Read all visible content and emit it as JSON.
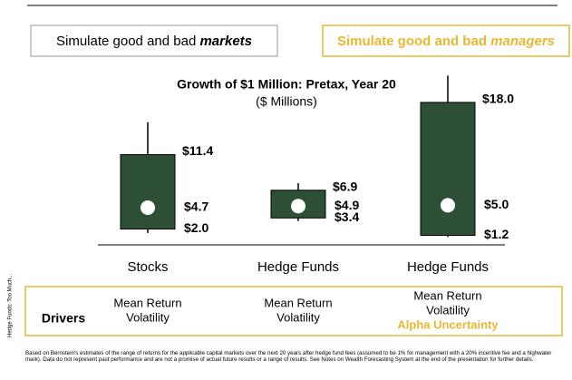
{
  "chart_data": {
    "type": "range-box",
    "top_boxes": [
      {
        "prefix": "Simulate good and bad ",
        "emphasis": "markets"
      },
      {
        "prefix": "Simulate good and bad ",
        "emphasis": "managers"
      }
    ],
    "title": "Growth of $1 Million: Pretax, Year 20",
    "subtitle": "($ Millions)",
    "categories": [
      "Stocks",
      "Hedge Funds",
      "Hedge Funds"
    ],
    "color": "#2d4f35",
    "ylim": [
      0,
      22
    ],
    "whisker_low": [
      1.5,
      3.0,
      1.0
    ],
    "low": [
      2.0,
      3.4,
      1.2
    ],
    "median": [
      4.7,
      4.9,
      5.0
    ],
    "high": [
      11.4,
      6.9,
      18.0
    ],
    "whisker_high": [
      15.5,
      7.8,
      21.4
    ],
    "low_labels": [
      "$2.0",
      "$3.4",
      "$1.2"
    ],
    "median_labels": [
      "$4.7",
      "$4.9",
      "$5.0"
    ],
    "high_labels": [
      "$11.4",
      "$6.9",
      "$18.0"
    ],
    "drivers": {
      "label": "Drivers",
      "columns": [
        [
          "Mean Return",
          "Volatility"
        ],
        [
          "Mean Return",
          "Volatility"
        ],
        [
          "Mean Return",
          "Volatility",
          "Alpha Uncertainty"
        ]
      ]
    },
    "side_text": "Hedge Funds: Too Much...",
    "footnote": "Based on Bernstein's estimates of the range of returns for the applicable capital markets over the next 20 years after hedge fund fees (assumed to be 1% for management with a 20% incentive fee and a highwater mark). Data do not represent past performance and are not a promise of actual future results or a range of results. See Notes on Wealth Forecasting System at the end of the presentation for further details."
  }
}
